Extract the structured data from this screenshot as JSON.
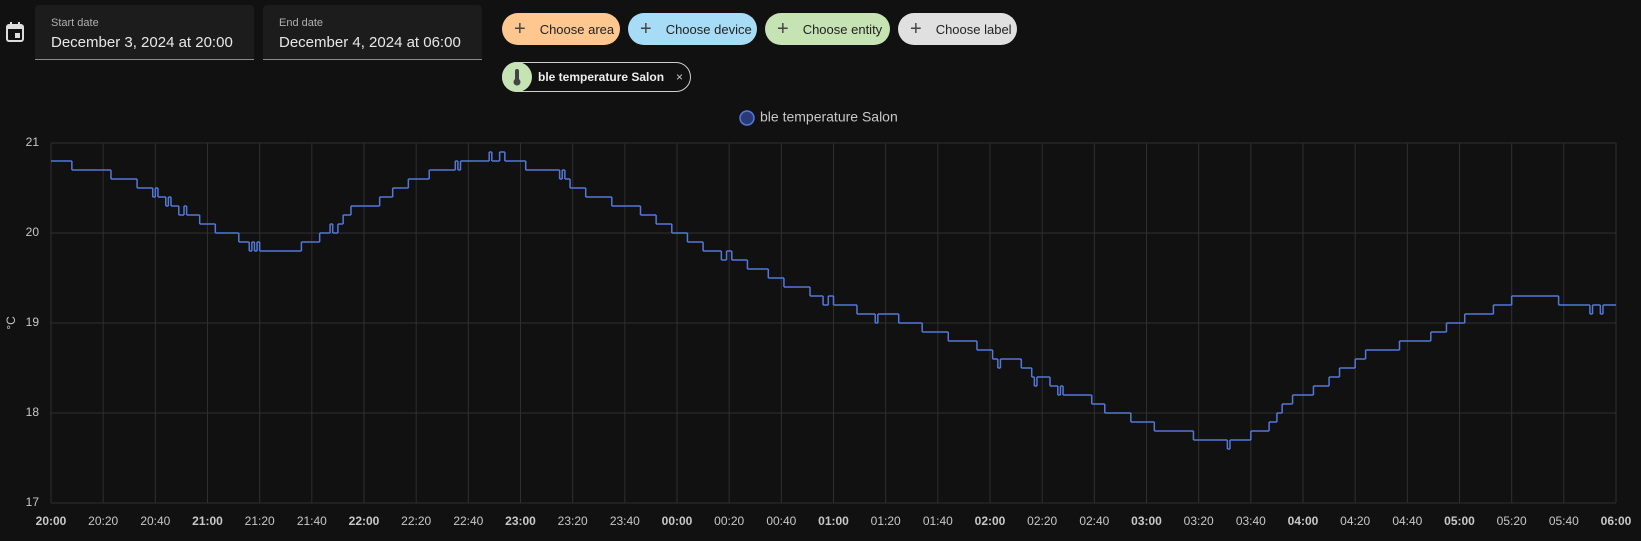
{
  "date_range": {
    "start": {
      "label": "Start date",
      "value": "December 3, 2024 at 20:00"
    },
    "end": {
      "label": "End date",
      "value": "December 4, 2024 at 06:00"
    }
  },
  "target_picker": {
    "chips": [
      "Choose area",
      "Choose device",
      "Choose entity",
      "Choose label"
    ],
    "selected": [
      "ble temperature Salon"
    ]
  },
  "chart_data": {
    "type": "step-line",
    "ylabel": "°C",
    "x": [
      "20:00",
      "20:08",
      "20:23",
      "20:33",
      "20:39",
      "20:40",
      "20:41",
      "20:44",
      "20:45",
      "20:46",
      "20:49",
      "20:51",
      "20:52",
      "20:57",
      "21:03",
      "21:12",
      "21:16",
      "21:17",
      "21:18",
      "21:19",
      "21:20",
      "21:36",
      "21:43",
      "21:47",
      "21:48",
      "21:50",
      "21:52",
      "21:55",
      "22:06",
      "22:11",
      "22:17",
      "22:25",
      "22:35",
      "22:36",
      "22:37",
      "22:48",
      "22:49",
      "22:52",
      "22:54",
      "23:02",
      "23:15",
      "23:16",
      "23:17",
      "23:19",
      "23:25",
      "23:35",
      "23:46",
      "23:52",
      "23:58",
      "00:04",
      "00:10",
      "00:17",
      "00:19",
      "00:21",
      "00:27",
      "00:35",
      "00:41",
      "00:51",
      "00:56",
      "00:58",
      "01:00",
      "01:09",
      "01:16",
      "01:17",
      "01:25",
      "01:34",
      "01:44",
      "01:55",
      "02:01",
      "02:03",
      "02:04",
      "02:12",
      "02:16",
      "02:17",
      "02:18",
      "02:23",
      "02:26",
      "02:27",
      "02:28",
      "02:39",
      "02:44",
      "02:54",
      "03:03",
      "03:18",
      "03:31",
      "03:32",
      "03:40",
      "03:47",
      "03:50",
      "03:52",
      "03:56",
      "04:04",
      "04:10",
      "04:14",
      "04:20",
      "04:24",
      "04:37",
      "04:49",
      "04:55",
      "05:02",
      "05:13",
      "05:20",
      "05:38",
      "05:50",
      "05:51",
      "05:54",
      "05:55",
      "06:00"
    ],
    "series": [
      {
        "name": "ble temperature Salon",
        "color": "#5478d8",
        "values": [
          20.8,
          20.7,
          20.6,
          20.5,
          20.4,
          20.5,
          20.4,
          20.3,
          20.4,
          20.3,
          20.2,
          20.3,
          20.2,
          20.1,
          20.0,
          19.9,
          19.8,
          19.9,
          19.8,
          19.9,
          19.8,
          19.9,
          20.0,
          20.1,
          20.0,
          20.1,
          20.2,
          20.3,
          20.4,
          20.5,
          20.6,
          20.7,
          20.8,
          20.7,
          20.8,
          20.9,
          20.8,
          20.9,
          20.8,
          20.7,
          20.6,
          20.7,
          20.6,
          20.5,
          20.4,
          20.3,
          20.2,
          20.1,
          20.0,
          19.9,
          19.8,
          19.7,
          19.8,
          19.7,
          19.6,
          19.5,
          19.4,
          19.3,
          19.2,
          19.3,
          19.2,
          19.1,
          19.0,
          19.1,
          19.0,
          18.9,
          18.8,
          18.7,
          18.6,
          18.5,
          18.6,
          18.5,
          18.4,
          18.3,
          18.4,
          18.3,
          18.2,
          18.3,
          18.2,
          18.1,
          18.0,
          17.9,
          17.8,
          17.7,
          17.6,
          17.7,
          17.8,
          17.9,
          18.0,
          18.1,
          18.2,
          18.3,
          18.4,
          18.5,
          18.6,
          18.7,
          18.8,
          18.9,
          19.0,
          19.1,
          19.2,
          19.3,
          19.2,
          19.1,
          19.2,
          19.1,
          19.2,
          19.2
        ]
      }
    ],
    "xlim": [
      "20:00",
      "06:00"
    ],
    "xticks": [
      "20:00",
      "20:20",
      "20:40",
      "21:00",
      "21:20",
      "21:40",
      "22:00",
      "22:20",
      "22:40",
      "23:00",
      "23:20",
      "23:40",
      "00:00",
      "00:20",
      "00:40",
      "01:00",
      "01:20",
      "01:40",
      "02:00",
      "02:20",
      "02:40",
      "03:00",
      "03:20",
      "03:40",
      "04:00",
      "04:20",
      "04:40",
      "05:00",
      "05:20",
      "05:40",
      "06:00"
    ],
    "ylim": [
      17,
      21
    ],
    "yticks": [
      17,
      18,
      19,
      20,
      21
    ],
    "grid": true
  }
}
